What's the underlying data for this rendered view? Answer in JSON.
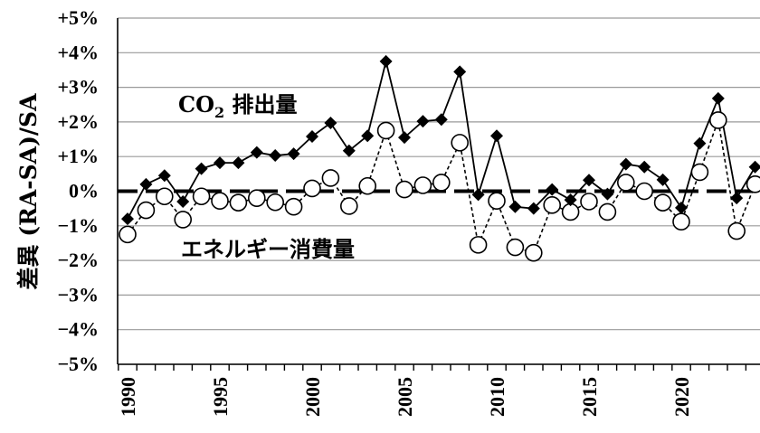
{
  "chart_data": {
    "type": "line",
    "title": "",
    "xlabel": "",
    "ylabel": "差異 (RA-SA)/SA",
    "ylim": [
      -5,
      5
    ],
    "xlim": [
      1989.5,
      2024.5
    ],
    "grid": true,
    "y_ticks": [
      5,
      4,
      3,
      2,
      1,
      0,
      -1,
      -2,
      -3,
      -4,
      -5
    ],
    "y_tick_labels": [
      "+5%",
      "+4%",
      "+3%",
      "+2%",
      "+1%",
      "0%",
      "−1%",
      "−2%",
      "−3%",
      "−4%",
      "−5%"
    ],
    "x_ticks": [
      1990,
      1995,
      2000,
      2005,
      2010,
      2015,
      2020
    ],
    "x_tick_labels": [
      "1990",
      "1995",
      "2000",
      "2005",
      "2010",
      "2015",
      "2020"
    ],
    "x": [
      1990,
      1991,
      1992,
      1993,
      1994,
      1995,
      1996,
      1997,
      1998,
      1999,
      2000,
      2001,
      2002,
      2003,
      2004,
      2005,
      2006,
      2007,
      2008,
      2009,
      2010,
      2011,
      2012,
      2013,
      2014,
      2015,
      2016,
      2017,
      2018,
      2019,
      2020,
      2021,
      2022,
      2023,
      2024
    ],
    "series": [
      {
        "name": "CO",
        "name_sub": "2",
        "name_suffix": " 排出量",
        "marker": "diamond",
        "line": "solid",
        "values": [
          -0.8,
          0.2,
          0.45,
          -0.3,
          0.65,
          0.82,
          0.82,
          1.12,
          1.03,
          1.08,
          1.58,
          1.97,
          1.17,
          1.6,
          3.75,
          1.55,
          2.02,
          2.07,
          3.45,
          -0.1,
          1.6,
          -0.45,
          -0.5,
          0.05,
          -0.25,
          0.32,
          -0.08,
          0.78,
          0.7,
          0.33,
          -0.48,
          1.38,
          2.68,
          -0.2,
          0.7
        ]
      },
      {
        "name": "エネルギー消費量",
        "marker": "circle-open",
        "line": "dashed",
        "values": [
          -1.25,
          -0.55,
          -0.15,
          -0.82,
          -0.15,
          -0.28,
          -0.33,
          -0.2,
          -0.32,
          -0.45,
          0.08,
          0.38,
          -0.43,
          0.15,
          1.75,
          0.05,
          0.17,
          0.25,
          1.4,
          -1.55,
          -0.28,
          -1.62,
          -1.78,
          -0.4,
          -0.6,
          -0.3,
          -0.6,
          0.25,
          0.0,
          -0.33,
          -0.88,
          0.55,
          2.05,
          -1.15,
          0.2
        ]
      }
    ],
    "annotations": {
      "co2_label": "CO",
      "co2_sub": "2",
      "co2_suffix": " 排出量",
      "energy_label": "エネルギー消費量"
    }
  }
}
